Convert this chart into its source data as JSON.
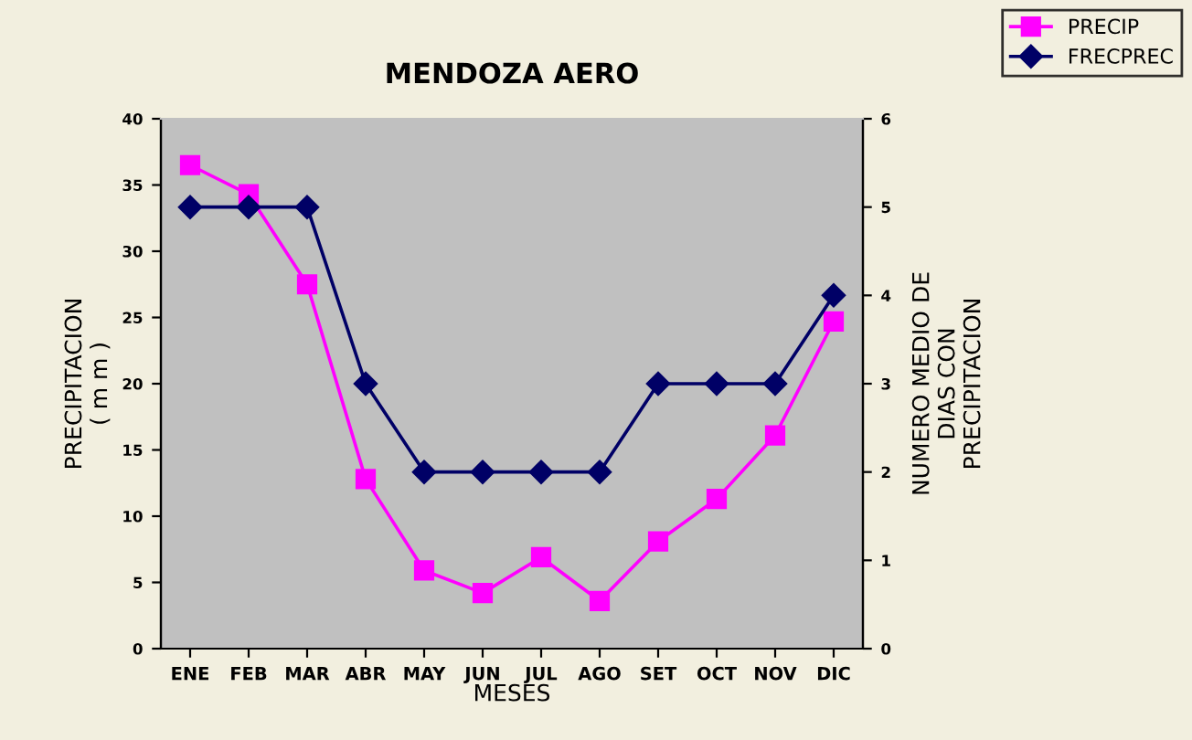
{
  "chart_data": {
    "type": "line",
    "title": "MENDOZA AERO",
    "xlabel": "MESES",
    "ylabel": "PRECIPITACION\n( m m )",
    "y2label": "NUMERO MEDIO DE\nDIAS CON\nPRECIPITACION",
    "categories": [
      "ENE",
      "FEB",
      "MAR",
      "ABR",
      "MAY",
      "JUN",
      "JUL",
      "AGO",
      "SET",
      "OCT",
      "NOV",
      "DIC"
    ],
    "series": [
      {
        "name": "PRECIP",
        "color": "#ff00ff",
        "marker": "square",
        "values": [
          36.5,
          34.3,
          27.5,
          12.8,
          5.9,
          4.2,
          6.9,
          3.6,
          8.1,
          11.3,
          16.1,
          24.7
        ]
      },
      {
        "name": "FRECPREC",
        "color": "#000066",
        "marker": "diamond",
        "axis": "y2",
        "values": [
          5,
          5,
          5,
          3,
          2,
          2,
          2,
          2,
          3,
          3,
          3,
          4
        ]
      }
    ],
    "ylim": [
      0,
      40
    ],
    "yticks": [
      0,
      5,
      10,
      15,
      20,
      25,
      30,
      35,
      40
    ],
    "y2lim": [
      0,
      6
    ],
    "y2ticks": [
      0,
      1,
      2,
      3,
      4,
      5,
      6
    ],
    "grid": false,
    "legend": "top right",
    "line_style": "solid"
  }
}
